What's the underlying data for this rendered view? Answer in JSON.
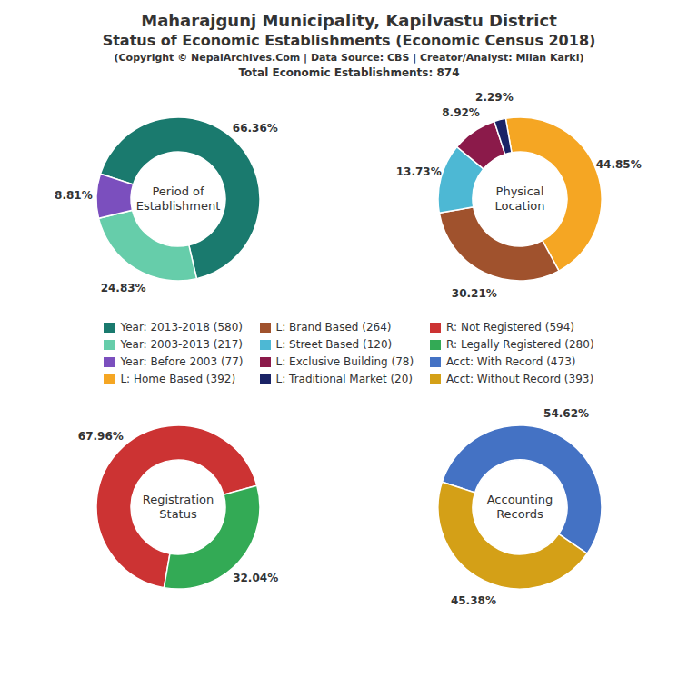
{
  "title": "Maharajgunj Municipality, Kapilvastu District",
  "subtitle": "Status of Economic Establishments (Economic Census 2018)",
  "annotations": [
    "(Copyright © NepalArchives.Com | Data Source: CBS | Creator/Analyst: Milan Karki)",
    "Total Economic Establishments: 874"
  ],
  "legend": "center",
  "chart_data": [
    {
      "type": "pie",
      "title": "Period of\nEstablishment",
      "categories": [
        "Year: 2013-2018 (580)",
        "Year: 2003-2013 (217)",
        "Year: Before 2003 (77)"
      ],
      "values": [
        66.36,
        24.83,
        8.81
      ],
      "value_labels": [
        "66.36%",
        "24.83%",
        "8.81%"
      ],
      "colors": [
        "#1a7a6e",
        "#66cdaa",
        "#7b4fbe"
      ],
      "data_labels": true
    },
    {
      "type": "pie",
      "title": "Physical\nLocation",
      "categories": [
        "L: Home Based (392)",
        "L: Brand Based (264)",
        "L: Street Based (120)",
        "L: Exclusive Building (78)",
        "L: Traditional Market (20)"
      ],
      "values": [
        44.85,
        30.21,
        13.73,
        8.92,
        2.29
      ],
      "value_labels": [
        "44.85%",
        "30.21%",
        "13.73%",
        "8.92%",
        "2.29%"
      ],
      "colors": [
        "#f5a623",
        "#a0522d",
        "#4db8d4",
        "#8b1a4a",
        "#1a2366"
      ],
      "data_labels": true
    },
    {
      "type": "pie",
      "title": "Registration\nStatus",
      "categories": [
        "R: Not Registered (594)",
        "R: Legally Registered (280)"
      ],
      "values": [
        67.96,
        32.04
      ],
      "value_labels": [
        "67.96%",
        "32.04%"
      ],
      "colors": [
        "#cc3333",
        "#33aa55"
      ],
      "data_labels": true
    },
    {
      "type": "pie",
      "title": "Accounting\nRecords",
      "categories": [
        "Acct: With Record (473)",
        "Acct: Without Record (393)"
      ],
      "values": [
        54.62,
        45.38
      ],
      "value_labels": [
        "54.62%",
        "45.38%"
      ],
      "colors": [
        "#4472c4",
        "#d4a017"
      ],
      "data_labels": true
    }
  ]
}
